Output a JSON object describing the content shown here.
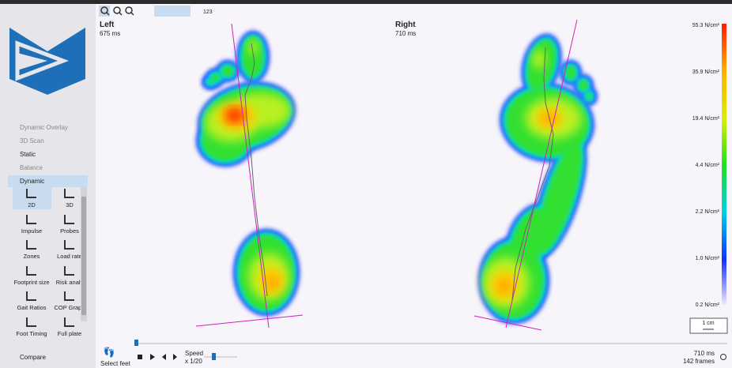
{
  "toolbar": {
    "label": "123"
  },
  "sidebar": {
    "menu": [
      "Dynamic Overlay",
      "3D Scan",
      "Static",
      "Balance",
      "Dynamic"
    ],
    "tools": [
      "2D",
      "3D",
      "Impulse",
      "Probes",
      "Zones",
      "Load rate",
      "Footprint size",
      "Risk analy",
      "Gait Ratios",
      "COP Graph",
      "Foot Timing",
      "Full plate"
    ],
    "compare": "Compare"
  },
  "views": {
    "left": {
      "title": "Left",
      "time": "675 ms"
    },
    "right": {
      "title": "Right",
      "time": "710 ms"
    }
  },
  "colorbar": {
    "labels": [
      "55.3 N/cm²",
      "35.9 N/cm²",
      "19.4 N/cm²",
      "4.4 N/cm²",
      "2.2 N/cm²",
      "1.0 N/cm²",
      "0.2 N/cm²"
    ]
  },
  "scale": "1 cm",
  "playback": {
    "select_feet": "Select feet",
    "speed": "Speed",
    "speed_value": "x 1/20",
    "time": "710 ms",
    "frames": "142 frames"
  }
}
